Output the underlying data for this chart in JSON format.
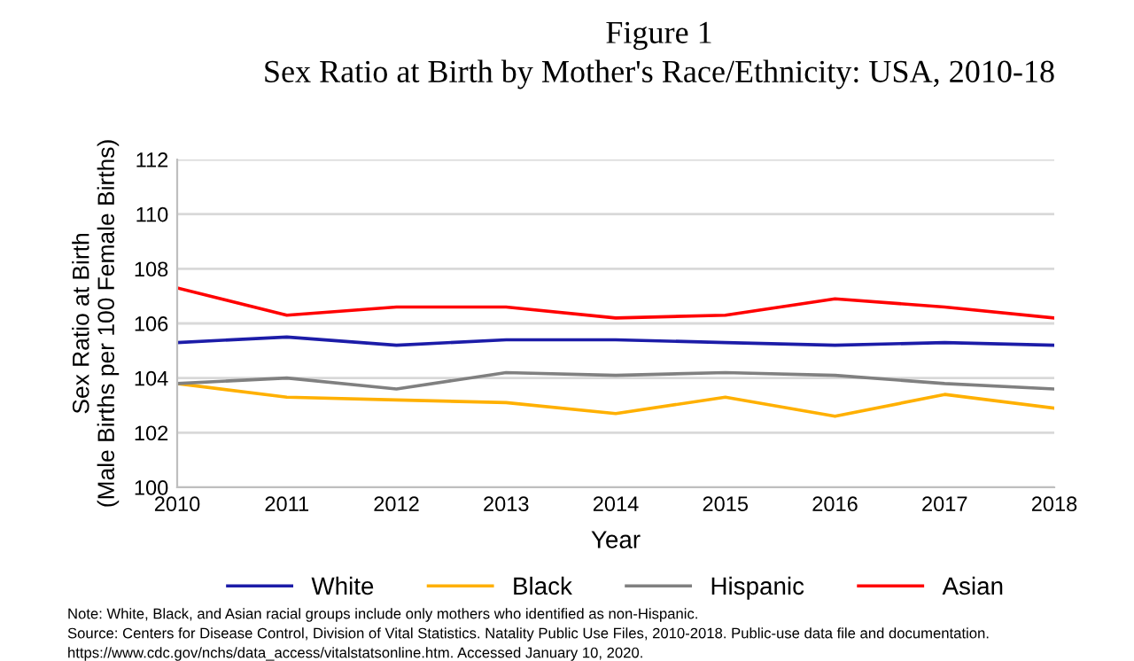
{
  "chart_data": {
    "type": "line",
    "title": "Figure 1",
    "subtitle": "Sex Ratio at Birth by Mother's Race/Ethnicity: USA, 2010-18",
    "xlabel": "Year",
    "ylabel": "Sex Ratio at Birth\n(Male Births per 100 Female Births)",
    "x": [
      2010,
      2011,
      2012,
      2013,
      2014,
      2015,
      2016,
      2017,
      2018
    ],
    "series": [
      {
        "name": "White",
        "color": "#1c1ca8",
        "values": [
          105.3,
          105.5,
          105.2,
          105.4,
          105.4,
          105.3,
          105.2,
          105.3,
          105.2
        ]
      },
      {
        "name": "Black",
        "color": "#ffb000",
        "values": [
          103.8,
          103.3,
          103.2,
          103.1,
          102.7,
          103.3,
          102.6,
          103.4,
          102.9
        ]
      },
      {
        "name": "Hispanic",
        "color": "#808080",
        "values": [
          103.8,
          104.0,
          103.6,
          104.2,
          104.1,
          104.2,
          104.1,
          103.8,
          103.6
        ]
      },
      {
        "name": "Asian",
        "color": "#ff0000",
        "values": [
          107.3,
          106.3,
          106.6,
          106.6,
          106.2,
          106.3,
          106.9,
          106.6,
          106.2
        ]
      }
    ],
    "xlim": [
      2010,
      2018
    ],
    "xticks": [
      2010,
      2011,
      2012,
      2013,
      2014,
      2015,
      2016,
      2017,
      2018
    ],
    "ylim": [
      100,
      112
    ],
    "yticks": [
      100,
      102,
      104,
      106,
      108,
      110,
      112
    ],
    "grid": "y",
    "legend": "bottom",
    "marker": "none",
    "line_style": "solid",
    "annotations": [
      "Note: White, Black, and Asian racial groups include only mothers who identified as non-Hispanic.",
      "Source: Centers for Disease Control, Division of Vital Statistics. Natality Public Use Files, 2010-2018. Public-use data file and documentation.",
      "https://www.cdc.gov/nchs/data_access/vitalstatsonline.htm. Accessed January 10, 2020."
    ]
  }
}
